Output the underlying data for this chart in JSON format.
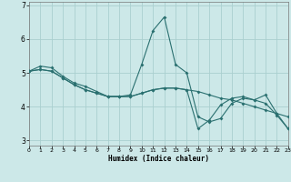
{
  "xlabel": "Humidex (Indice chaleur)",
  "bg_color": "#cce8e8",
  "grid_color": "#aacfcf",
  "line_color": "#2a7070",
  "xlim": [
    0,
    23
  ],
  "ylim": [
    2.85,
    7.1
  ],
  "yticks": [
    3,
    4,
    5,
    6,
    7
  ],
  "xticks": [
    0,
    1,
    2,
    3,
    4,
    5,
    6,
    7,
    8,
    9,
    10,
    11,
    12,
    13,
    14,
    15,
    16,
    17,
    18,
    19,
    20,
    21,
    22,
    23
  ],
  "line1_x": [
    0,
    1,
    2,
    3,
    4,
    5,
    6,
    7,
    8,
    9,
    10,
    11,
    12,
    13,
    14,
    15,
    16,
    17,
    18,
    19,
    20,
    21,
    22,
    23
  ],
  "line1_y": [
    5.05,
    5.2,
    5.15,
    4.9,
    4.7,
    4.6,
    4.45,
    4.3,
    4.3,
    4.35,
    5.25,
    6.25,
    6.65,
    5.25,
    5.0,
    3.7,
    3.55,
    3.65,
    4.1,
    4.25,
    4.2,
    4.1,
    3.75,
    3.35
  ],
  "line2_x": [
    0,
    1,
    2,
    3,
    4,
    5,
    6,
    7,
    8,
    9,
    10,
    11,
    12,
    13,
    14,
    15,
    16,
    17,
    18,
    19,
    20,
    21,
    22,
    23
  ],
  "line2_y": [
    5.05,
    5.1,
    5.05,
    4.85,
    4.65,
    4.5,
    4.4,
    4.3,
    4.3,
    4.3,
    4.4,
    4.5,
    4.55,
    4.55,
    4.5,
    4.45,
    4.35,
    4.25,
    4.2,
    4.1,
    4.0,
    3.9,
    3.8,
    3.7
  ],
  "line3_x": [
    0,
    1,
    2,
    3,
    4,
    5,
    6,
    7,
    8,
    9,
    10,
    11,
    12,
    13,
    14,
    15,
    16,
    17,
    18,
    19,
    20,
    21,
    22,
    23
  ],
  "line3_y": [
    5.05,
    5.1,
    5.05,
    4.85,
    4.65,
    4.5,
    4.4,
    4.3,
    4.3,
    4.3,
    4.4,
    4.5,
    4.55,
    4.55,
    4.5,
    3.35,
    3.6,
    4.05,
    4.25,
    4.3,
    4.2,
    4.35,
    3.8,
    3.35
  ],
  "lw": 0.8,
  "ms": 2.0
}
